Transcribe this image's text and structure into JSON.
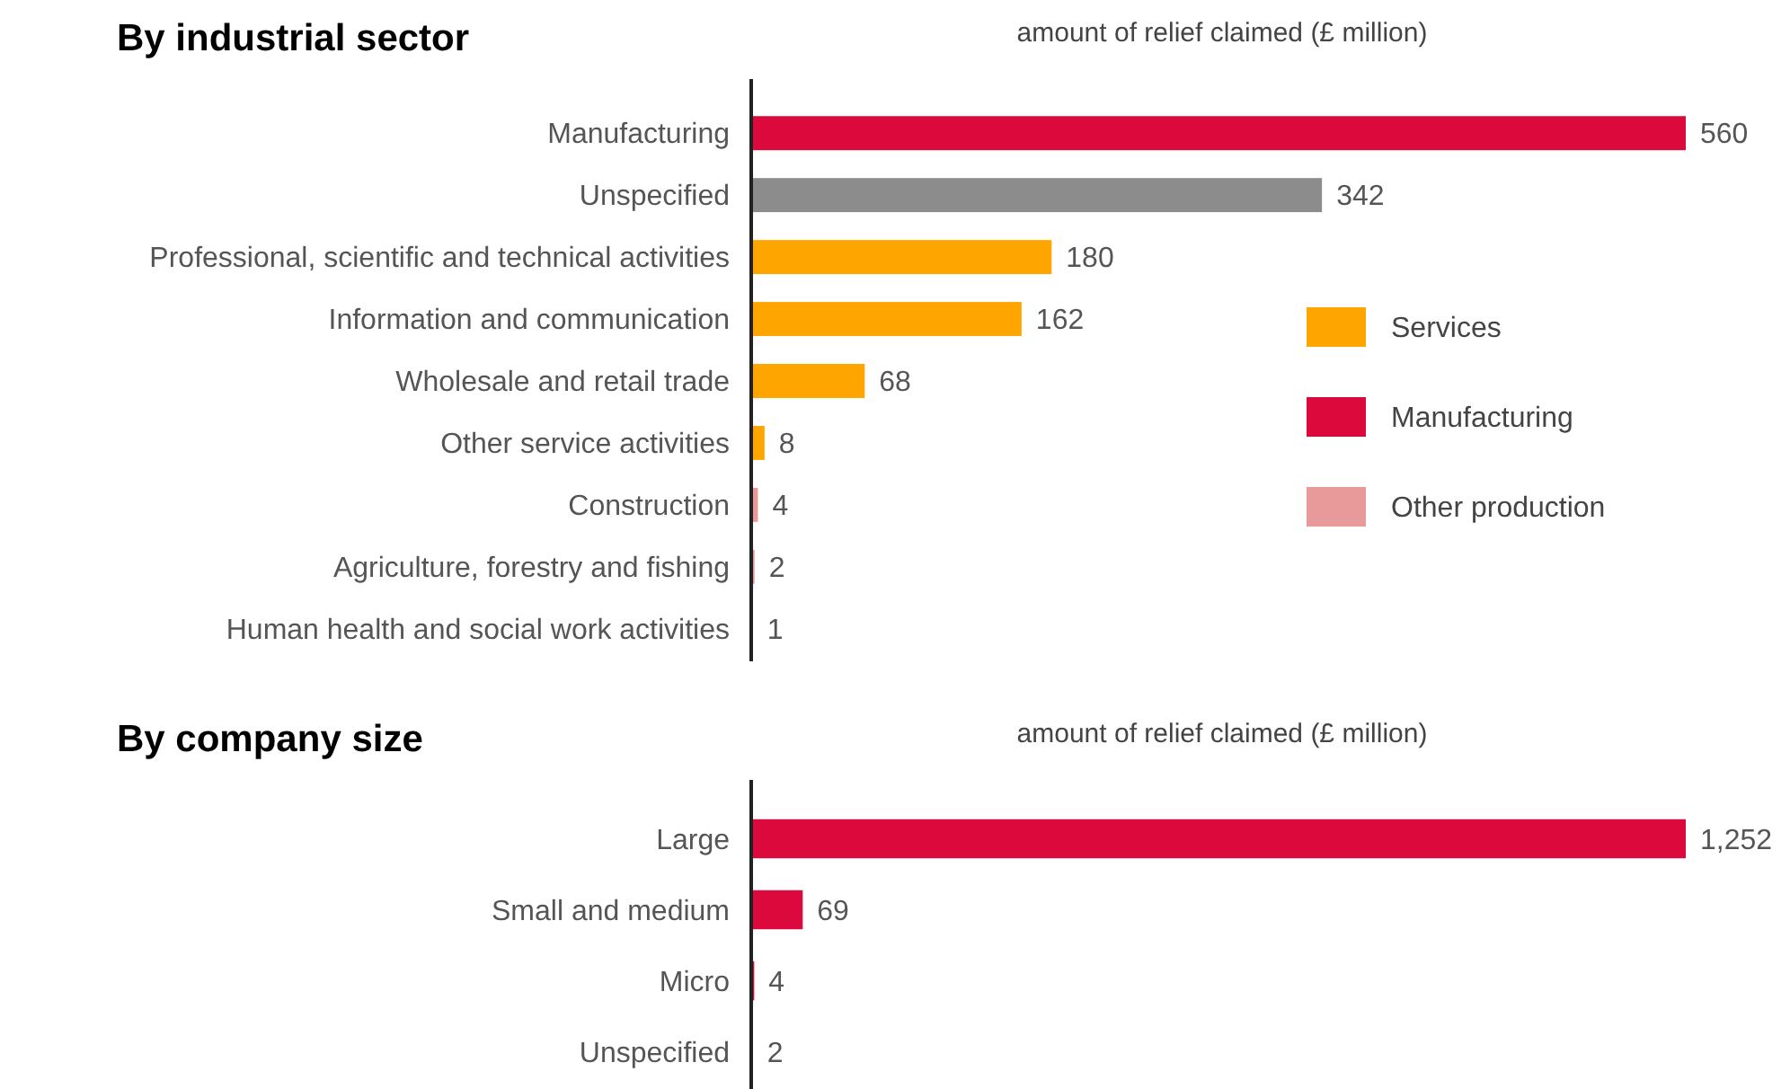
{
  "chart_data": [
    {
      "type": "bar",
      "orientation": "horizontal",
      "title": "By industrial sector",
      "xlabel": "amount of relief claimed (£ million)",
      "categories": [
        "Manufacturing",
        "Unspecified",
        "Professional, scientific and technical activities",
        "Information and communication",
        "Wholesale and retail trade",
        "Other service activities",
        "Construction",
        "Agriculture, forestry and fishing",
        "Human health and social work activities"
      ],
      "series": [
        {
          "name": "Services",
          "color": "#ffa500",
          "values": [
            null,
            null,
            180,
            162,
            68,
            8,
            null,
            null,
            1
          ]
        },
        {
          "name": "Manufacturing",
          "color": "#dc0a3c",
          "values": [
            560,
            null,
            null,
            null,
            null,
            null,
            null,
            null,
            null
          ]
        },
        {
          "name": "Other production",
          "color": "#e89a9a",
          "values": [
            null,
            null,
            null,
            null,
            null,
            null,
            4,
            2,
            null
          ]
        },
        {
          "color": "#8c8c8c",
          "values": [
            null,
            342,
            null,
            null,
            null,
            null,
            null,
            null,
            null
          ]
        }
      ],
      "xlim": [
        0,
        560
      ],
      "data_labels": true,
      "legend": "right",
      "tick_labels": "y"
    },
    {
      "type": "bar",
      "orientation": "horizontal",
      "title": "By company size",
      "xlabel": "amount of relief claimed (£ million)",
      "categories": [
        "Large",
        "Small and medium",
        "Micro",
        "Unspecified"
      ],
      "values": [
        1252,
        69,
        4,
        2
      ],
      "value_labels": [
        "1,252",
        "69",
        "4",
        "2"
      ],
      "color": "#dc0a3c",
      "xlim": [
        0,
        1252
      ],
      "tick_labels": "y"
    }
  ]
}
